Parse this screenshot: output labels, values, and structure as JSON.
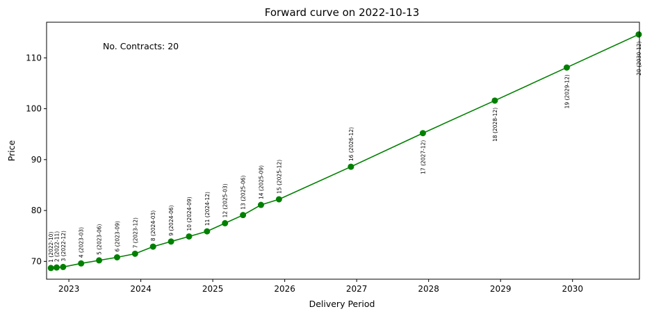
{
  "chart_data": {
    "type": "line",
    "title": "Forward curve on 2022-10-13",
    "xlabel": "Delivery Period",
    "ylabel": "Price",
    "annotation": "No. Contracts: 20",
    "xlim": [
      2022.69,
      2030.93
    ],
    "ylim": [
      66.5,
      117.0
    ],
    "x_ticks": [
      2023,
      2024,
      2025,
      2026,
      2027,
      2028,
      2029,
      2030
    ],
    "x_tick_labels": [
      "2023",
      "2024",
      "2025",
      "2026",
      "2027",
      "2028",
      "2029",
      "2030"
    ],
    "y_ticks": [
      70,
      80,
      90,
      100,
      110
    ],
    "y_tick_labels": [
      "70",
      "80",
      "90",
      "100",
      "110"
    ],
    "grid": false,
    "color": "#008000",
    "marker": "circle",
    "series": [
      {
        "points": [
          {
            "x": 2022.75,
            "y": 68.7,
            "label": "1 (2022-10)"
          },
          {
            "x": 2022.83,
            "y": 68.8,
            "label": "2 (2022-11)"
          },
          {
            "x": 2022.92,
            "y": 68.9,
            "label": "3 (2022-12)"
          },
          {
            "x": 2023.17,
            "y": 69.6,
            "label": "4 (2023-03)"
          },
          {
            "x": 2023.42,
            "y": 70.2,
            "label": "5 (2023-06)"
          },
          {
            "x": 2023.67,
            "y": 70.8,
            "label": "6 (2023-09)"
          },
          {
            "x": 2023.92,
            "y": 71.5,
            "label": "7 (2023-12)"
          },
          {
            "x": 2024.17,
            "y": 72.9,
            "label": "8 (2024-03)"
          },
          {
            "x": 2024.42,
            "y": 73.9,
            "label": "9 (2024-06)"
          },
          {
            "x": 2024.67,
            "y": 74.9,
            "label": "10 (2024-09)"
          },
          {
            "x": 2024.92,
            "y": 75.9,
            "label": "11 (2024-12)"
          },
          {
            "x": 2025.17,
            "y": 77.5,
            "label": "12 (2025-03)"
          },
          {
            "x": 2025.42,
            "y": 79.1,
            "label": "13 (2025-06)"
          },
          {
            "x": 2025.67,
            "y": 81.1,
            "label": "14 (2025-09)"
          },
          {
            "x": 2025.92,
            "y": 82.2,
            "label": "15 (2025-12)"
          },
          {
            "x": 2026.92,
            "y": 88.6,
            "label": "16 (2026-12)"
          },
          {
            "x": 2027.92,
            "y": 95.2,
            "label": "17 (2027-12)"
          },
          {
            "x": 2028.92,
            "y": 101.6,
            "label": "18 (2028-12)"
          },
          {
            "x": 2029.92,
            "y": 108.1,
            "label": "19 (2029-12)"
          },
          {
            "x": 2030.92,
            "y": 114.6,
            "label": "20 (2030-12)"
          }
        ]
      }
    ]
  }
}
